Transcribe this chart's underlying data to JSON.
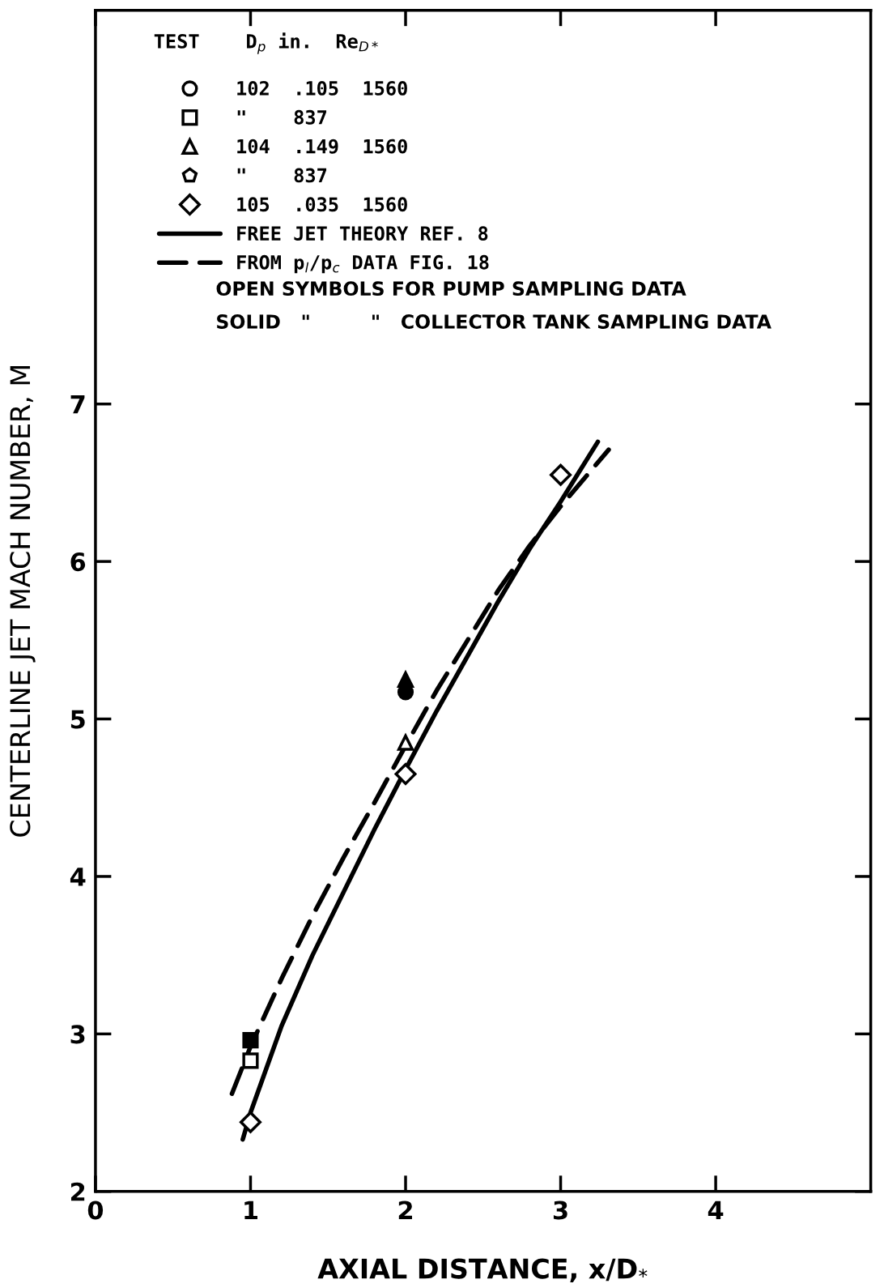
{
  "chart_data": {
    "type": "scatter",
    "xlabel": "AXIAL DISTANCE, x/D$_{*}$",
    "ylabel": "CENTERLINE JET MACH NUMBER, M",
    "xlim": [
      0,
      5
    ],
    "ylim": [
      2,
      9.5
    ],
    "xticks": [
      0,
      1,
      2,
      3,
      4
    ],
    "yticks": [
      2,
      3,
      4,
      5,
      6,
      7
    ],
    "grid": false,
    "legend": "top left",
    "annotations": [
      "TEST    D$_{p}$ in.  Re$_{D*}$",
      "OPEN SYMBOLS FOR PUMP SAMPLING DATA",
      "SOLID   \"         \"   COLLECTOR TANK SAMPLING DATA"
    ],
    "series": [
      {
        "name": "102  .105  1560",
        "marker": "circle",
        "color": "#000000"
      },
      {
        "name": "\"    837",
        "marker": "square",
        "color": "#000000",
        "x": [
          1
        ],
        "values": [
          2.83
        ]
      },
      {
        "name": "104  .149  1560",
        "marker": "triangle",
        "color": "#000000",
        "x": [
          2
        ],
        "values": [
          4.85
        ]
      },
      {
        "name": "\"    837",
        "marker": "pentagon",
        "color": "#000000"
      },
      {
        "name": "105  .035  1560",
        "marker": "diamond",
        "color": "#000000",
        "x": [
          1,
          2,
          3
        ],
        "values": [
          2.44,
          4.65,
          6.55
        ]
      },
      {
        "marker": "square",
        "color": "#000000",
        "x": [
          1
        ],
        "values": [
          2.96
        ]
      },
      {
        "marker": "triangle",
        "color": "#000000",
        "x": [
          2
        ],
        "values": [
          5.25
        ]
      },
      {
        "marker": "circle",
        "color": "#000000",
        "x": [
          2
        ],
        "values": [
          5.17
        ]
      },
      {
        "name": "FREE JET THEORY REF. 8",
        "type": "line",
        "line_style": "solid",
        "marker": "none",
        "color": "#000000",
        "x": [
          0.95,
          1.0,
          1.2,
          1.4,
          1.6,
          1.8,
          2.0,
          2.2,
          2.4,
          2.6,
          2.8,
          3.0,
          3.24
        ],
        "values": [
          2.33,
          2.5,
          3.05,
          3.5,
          3.9,
          4.3,
          4.68,
          5.05,
          5.4,
          5.75,
          6.08,
          6.38,
          6.76
        ]
      },
      {
        "name": "FROM p$_{l}$/p$_{c}$ DATA FIG. 18",
        "type": "line",
        "line_style": "dashed",
        "marker": "none",
        "color": "#000000",
        "x": [
          0.88,
          1.0,
          1.2,
          1.4,
          1.6,
          1.8,
          2.0,
          2.2,
          2.4,
          2.6,
          2.8,
          3.0,
          3.31
        ],
        "values": [
          2.62,
          2.92,
          3.35,
          3.75,
          4.12,
          4.47,
          4.83,
          5.18,
          5.5,
          5.82,
          6.1,
          6.35,
          6.71
        ]
      }
    ]
  }
}
